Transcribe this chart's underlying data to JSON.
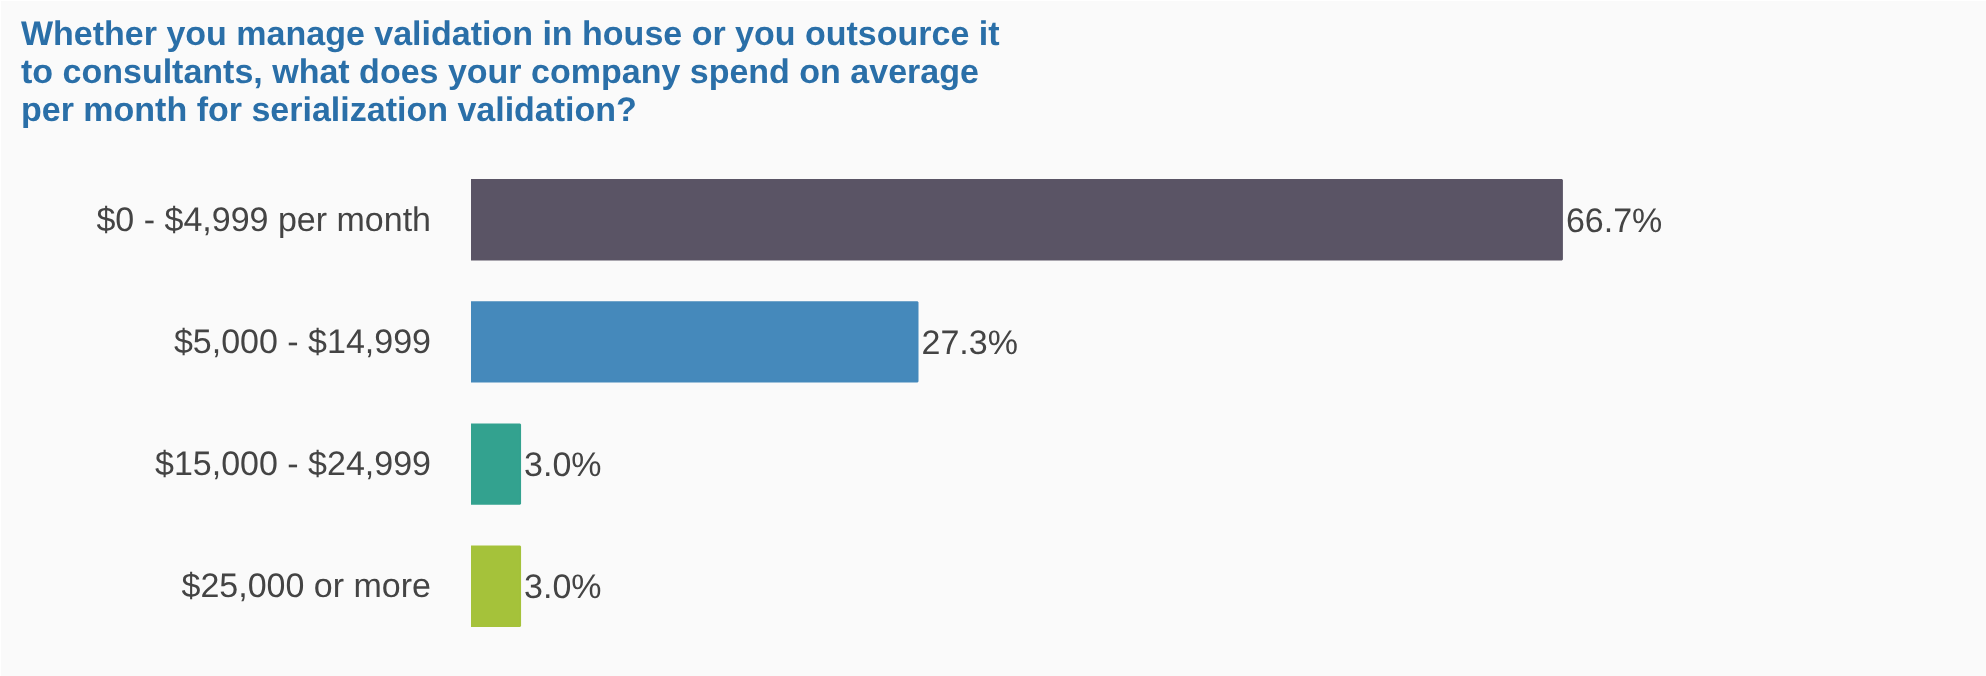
{
  "chart_data": {
    "type": "bar",
    "orientation": "horizontal",
    "title": "Whether you manage validation in house or you outsource it to consultants, what does your company spend on average per month for serialization validation?",
    "categories": [
      "$0 - $4,999 per month",
      "$5,000 - $14,999",
      "$15,000 - $24,999",
      "$25,000 or more"
    ],
    "values": [
      66.7,
      27.3,
      3.0,
      3.0
    ],
    "colors": [
      "#5a5465",
      "#4589bb",
      "#33a28f",
      "#a5c23a"
    ],
    "value_labels": [
      "66.7%",
      "27.3%",
      "3.0%",
      "3.0%"
    ],
    "grid": false
  }
}
